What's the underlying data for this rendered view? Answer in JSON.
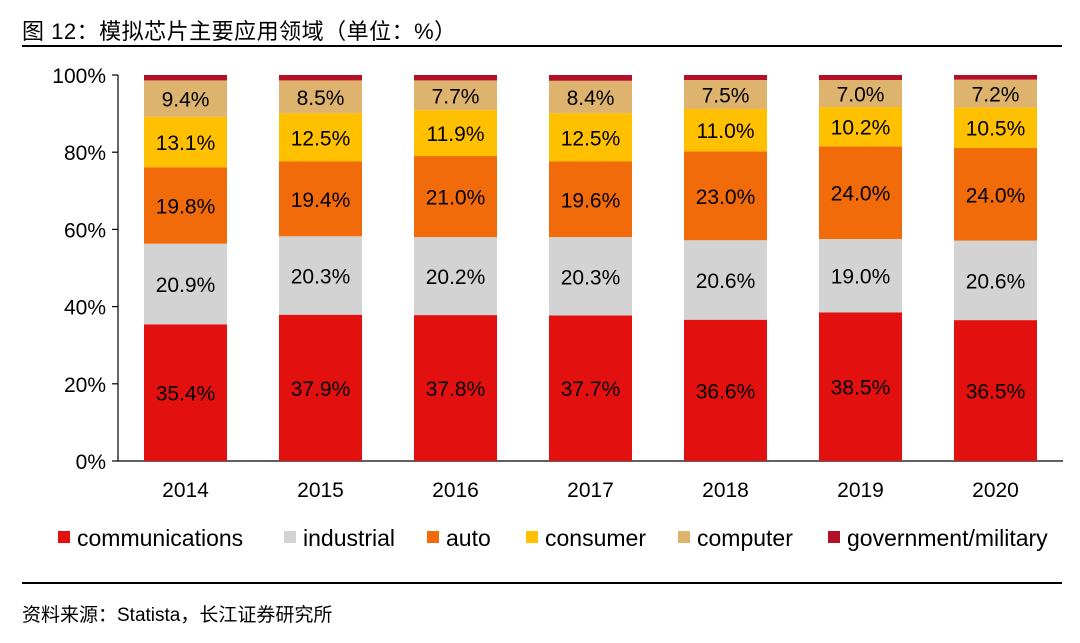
{
  "figure": {
    "title": "图  12：模拟芯片主要应用领域（单位：%）",
    "source": "资料来源：Statista，长江证券研究所"
  },
  "colors": {
    "communications": "#e2110f",
    "industrial": "#d3d3d3",
    "auto": "#f26b0a",
    "consumer": "#ffc000",
    "computer": "#ddb36e",
    "government/military": "#b5102a"
  },
  "chart_data": {
    "type": "bar",
    "stacked": true,
    "normalized": true,
    "title": "",
    "xlabel": "",
    "ylabel": "",
    "ylim": [
      0,
      100
    ],
    "y_ticks": [
      "0%",
      "20%",
      "40%",
      "60%",
      "80%",
      "100%"
    ],
    "categories": [
      "2014",
      "2015",
      "2016",
      "2017",
      "2018",
      "2019",
      "2020"
    ],
    "series": [
      {
        "name": "communications",
        "values": [
          35.4,
          37.9,
          37.8,
          37.7,
          36.6,
          38.5,
          36.5
        ],
        "labels": [
          "35.4%",
          "37.9%",
          "37.8%",
          "37.7%",
          "36.6%",
          "38.5%",
          "36.5%"
        ]
      },
      {
        "name": "industrial",
        "values": [
          20.9,
          20.3,
          20.2,
          20.3,
          20.6,
          19.0,
          20.6
        ],
        "labels": [
          "20.9%",
          "20.3%",
          "20.2%",
          "20.3%",
          "20.6%",
          "19.0%",
          "20.6%"
        ]
      },
      {
        "name": "auto",
        "values": [
          19.8,
          19.4,
          21.0,
          19.6,
          23.0,
          24.0,
          24.0
        ],
        "labels": [
          "19.8%",
          "19.4%",
          "21.0%",
          "19.6%",
          "23.0%",
          "24.0%",
          "24.0%"
        ]
      },
      {
        "name": "consumer",
        "values": [
          13.1,
          12.5,
          11.9,
          12.5,
          11.0,
          10.2,
          10.5
        ],
        "labels": [
          "13.1%",
          "12.5%",
          "11.9%",
          "12.5%",
          "11.0%",
          "10.2%",
          "10.5%"
        ]
      },
      {
        "name": "computer",
        "values": [
          9.4,
          8.5,
          7.7,
          8.4,
          7.5,
          7.0,
          7.2
        ],
        "labels": [
          "9.4%",
          "8.5%",
          "7.7%",
          "8.4%",
          "7.5%",
          "7.0%",
          "7.2%"
        ]
      },
      {
        "name": "government/military",
        "values": [
          1.4,
          1.4,
          1.4,
          1.5,
          1.3,
          1.3,
          1.2
        ],
        "labels": [
          "",
          "",
          "",
          "",
          "",
          "",
          ""
        ]
      }
    ],
    "legend": {
      "position": "bottom",
      "entries": [
        "communications",
        "industrial",
        "auto",
        "consumer",
        "computer",
        "government/military"
      ]
    },
    "grid": false
  }
}
